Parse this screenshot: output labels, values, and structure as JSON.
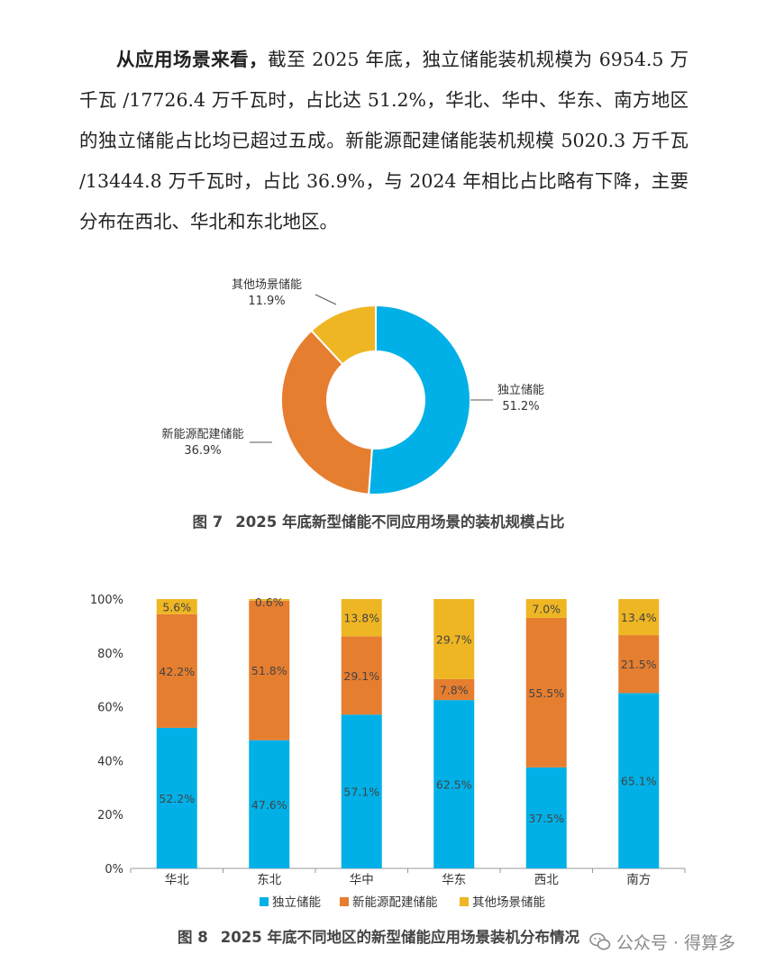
{
  "paragraph": {
    "lead": "从应用场景来看，",
    "body": "截至 2025 年底，独立储能装机规模为 6954.5 万千瓦 /17726.4 万千瓦时，占比达 51.2%，华北、华中、华东、南方地区的独立储能占比均已超过五成。新能源配建储能装机规模 5020.3 万千瓦 /13444.8 万千瓦时，占比 36.9%，与 2024 年相比占比略有下降，主要分布在西北、华北和东北地区。"
  },
  "colors": {
    "independent": "#00B0E6",
    "newenergy": "#E67E30",
    "other": "#EFB623"
  },
  "chart_data": [
    {
      "type": "pie",
      "donut": true,
      "title": "",
      "slices": [
        {
          "label": "独立储能",
          "value": 51.2,
          "display": "51.2%",
          "color": "#00B0E6"
        },
        {
          "label": "新能源配建储能",
          "value": 36.9,
          "display": "36.9%",
          "color": "#E67E30"
        },
        {
          "label": "其他场景储能",
          "value": 11.9,
          "display": "11.9%",
          "color": "#EFB623"
        }
      ],
      "caption_num": "图 7",
      "caption": "2025 年底新型储能不同应用场景的装机规模占比"
    },
    {
      "type": "bar",
      "stacked": true,
      "categories": [
        "华北",
        "东北",
        "华中",
        "华东",
        "西北",
        "南方"
      ],
      "series": [
        {
          "name": "独立储能",
          "color": "#00B0E6",
          "values": [
            52.2,
            47.6,
            57.1,
            62.5,
            37.5,
            65.1
          ],
          "labels": [
            "52.2%",
            "47.6%",
            "57.1%",
            "62.5%",
            "37.5%",
            "65.1%"
          ]
        },
        {
          "name": "新能源配建储能",
          "color": "#E67E30",
          "values": [
            42.2,
            51.8,
            29.1,
            7.8,
            55.5,
            21.5
          ],
          "labels": [
            "42.2%",
            "51.8%",
            "29.1%",
            "7.8%",
            "55.5%",
            "21.5%"
          ]
        },
        {
          "name": "其他场景储能",
          "color": "#EFB623",
          "values": [
            5.6,
            0.6,
            13.8,
            29.7,
            7.0,
            13.4
          ],
          "labels": [
            "5.6%",
            "0.6%",
            "13.8%",
            "29.7%",
            "7.0%",
            "13.4%"
          ]
        }
      ],
      "ylim": [
        0,
        100
      ],
      "yticks": [
        "0%",
        "20%",
        "40%",
        "60%",
        "80%",
        "100%"
      ],
      "legend": "bottom",
      "caption_num": "图 8",
      "caption": "2025 年底不同地区的新型储能应用场景装机分布情况"
    }
  ],
  "watermark": {
    "text": "公众号 · 得算多",
    "icon": "wechat-icon"
  }
}
